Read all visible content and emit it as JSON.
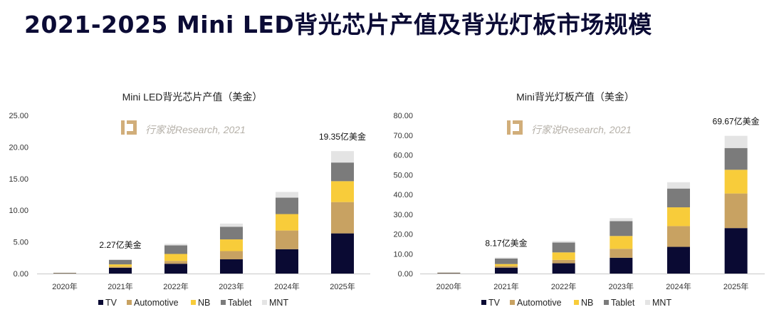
{
  "page": {
    "title": "2021-2025 Mini LED背光芯片产值及背光灯板市场规模"
  },
  "watermark": {
    "text": "行家说Research, 2021",
    "logo_color": "#c9a063"
  },
  "colors": {
    "TV": "#0a0a33",
    "Automotive": "#c8a262",
    "NB": "#f8cc3a",
    "Tablet": "#7b7b7b",
    "MNT": "#e4e4e4"
  },
  "chart_data": [
    {
      "type": "bar",
      "stacked": true,
      "title": "Mini LED背光芯片产值（美金）",
      "categories": [
        "2020年",
        "2021年",
        "2022年",
        "2023年",
        "2024年",
        "2025年"
      ],
      "series": [
        {
          "name": "TV",
          "values": [
            0.05,
            0.9,
            1.55,
            2.25,
            3.85,
            6.35
          ]
        },
        {
          "name": "Automotive",
          "values": [
            0.02,
            0.2,
            0.45,
            1.3,
            2.95,
            4.95
          ]
        },
        {
          "name": "NB",
          "values": [
            0.03,
            0.35,
            1.1,
            1.85,
            2.6,
            3.3
          ]
        },
        {
          "name": "Tablet",
          "values": [
            0.02,
            0.7,
            1.35,
            2.0,
            2.6,
            2.95
          ]
        },
        {
          "name": "MNT",
          "values": [
            0.01,
            0.12,
            0.25,
            0.5,
            0.9,
            1.8
          ]
        }
      ],
      "ylim": [
        0,
        25
      ],
      "yticks": [
        "0.00",
        "5.00",
        "10.00",
        "15.00",
        "20.00",
        "25.00"
      ],
      "annotations": [
        {
          "category": "2021年",
          "text": "2.27亿美金"
        },
        {
          "category": "2025年",
          "text": "19.35亿美金"
        }
      ],
      "legend": {
        "position": "bottom",
        "labels": [
          "TV",
          "Automotive",
          "NB",
          "Tablet",
          "MNT"
        ]
      },
      "grid": false
    },
    {
      "type": "bar",
      "stacked": true,
      "title": "Mini背光灯板产值（美金）",
      "categories": [
        "2020年",
        "2021年",
        "2022年",
        "2023年",
        "2024年",
        "2025年"
      ],
      "series": [
        {
          "name": "TV",
          "values": [
            0.2,
            3.0,
            5.2,
            8.0,
            13.5,
            23.0
          ]
        },
        {
          "name": "Automotive",
          "values": [
            0.1,
            0.8,
            1.7,
            4.5,
            10.5,
            17.5
          ]
        },
        {
          "name": "NB",
          "values": [
            0.1,
            1.0,
            3.8,
            6.5,
            9.5,
            12.0
          ]
        },
        {
          "name": "Tablet",
          "values": [
            0.1,
            2.8,
            5.0,
            7.5,
            9.5,
            11.0
          ]
        },
        {
          "name": "MNT",
          "values": [
            0.05,
            0.57,
            0.8,
            1.5,
            3.2,
            6.17
          ]
        }
      ],
      "ylim": [
        0,
        80
      ],
      "yticks": [
        "0.00",
        "10.00",
        "20.00",
        "30.00",
        "40.00",
        "50.00",
        "60.00",
        "70.00",
        "80.00"
      ],
      "annotations": [
        {
          "category": "2021年",
          "text": "8.17亿美金"
        },
        {
          "category": "2025年",
          "text": "69.67亿美金"
        }
      ],
      "legend": {
        "position": "bottom",
        "labels": [
          "TV",
          "Automotive",
          "NB",
          "Tablet",
          "MNT"
        ]
      },
      "grid": false
    }
  ]
}
